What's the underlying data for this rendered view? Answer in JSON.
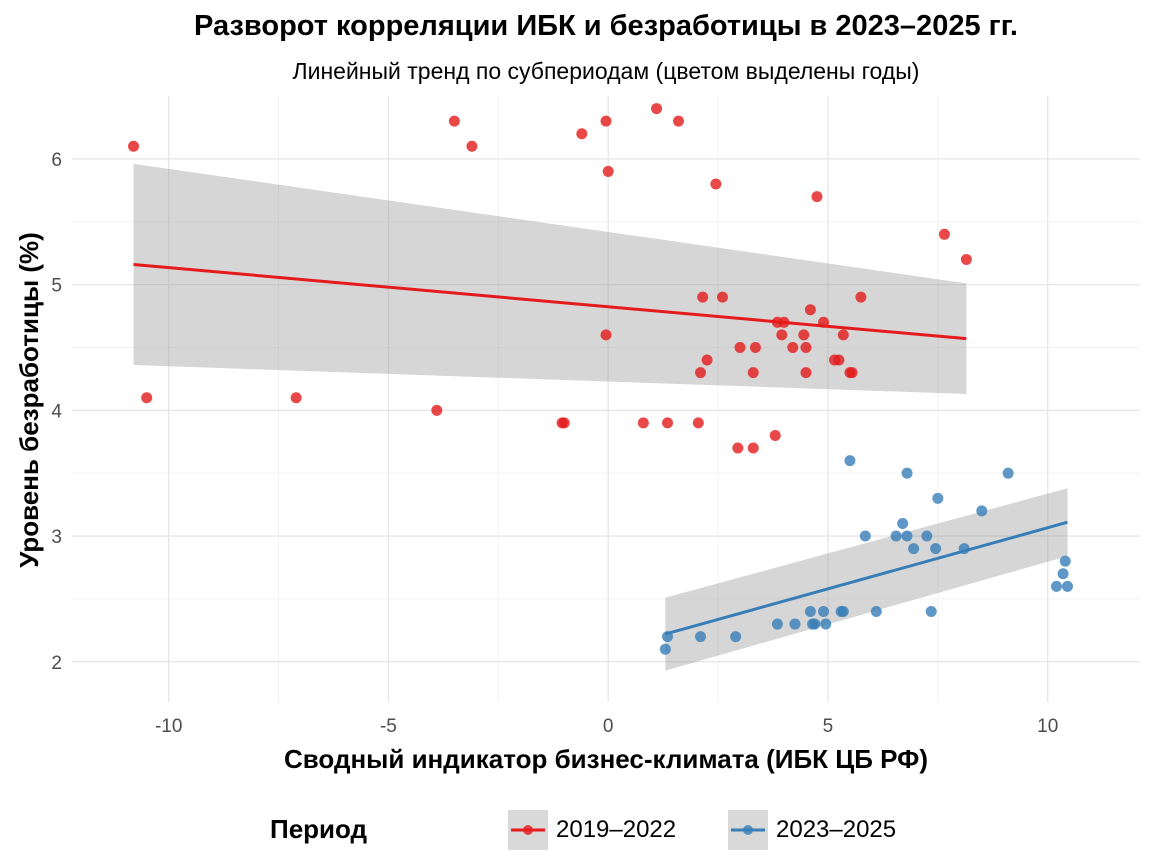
{
  "chart_data": {
    "type": "scatter",
    "title": "Разворот корреляции ИБК и безработицы в 2023–2025 гг.",
    "subtitle": "Линейный тренд по субпериодам (цветом выделены годы)",
    "xlabel": "Сводный индикатор бизнес-климата (ИБК ЦБ РФ)",
    "ylabel": "Уровень безработицы (%)",
    "xlim": [
      -12.2,
      12.1
    ],
    "ylim": [
      1.68,
      6.5
    ],
    "x_ticks": [
      -10,
      -5,
      0,
      5,
      10
    ],
    "y_ticks": [
      2,
      3,
      4,
      5,
      6
    ],
    "grid": true,
    "legend": {
      "title": "Период",
      "position": "bottom"
    },
    "series": [
      {
        "name": "2019–2022",
        "color": "#e41a1c",
        "points": [
          [
            -10.8,
            6.1
          ],
          [
            -10.5,
            4.1
          ],
          [
            -7.1,
            4.1
          ],
          [
            -3.9,
            4.0
          ],
          [
            -3.5,
            6.3
          ],
          [
            -3.1,
            6.1
          ],
          [
            -1.0,
            3.9
          ],
          [
            -1.05,
            3.9
          ],
          [
            -0.6,
            6.2
          ],
          [
            -0.05,
            6.3
          ],
          [
            0.0,
            5.9
          ],
          [
            -0.05,
            4.6
          ],
          [
            0.8,
            3.9
          ],
          [
            1.1,
            6.4
          ],
          [
            1.35,
            3.9
          ],
          [
            1.6,
            6.3
          ],
          [
            2.05,
            3.9
          ],
          [
            2.1,
            4.3
          ],
          [
            2.15,
            4.9
          ],
          [
            2.25,
            4.4
          ],
          [
            2.45,
            5.8
          ],
          [
            2.6,
            4.9
          ],
          [
            2.95,
            3.7
          ],
          [
            3.0,
            4.5
          ],
          [
            3.3,
            3.7
          ],
          [
            3.3,
            4.3
          ],
          [
            3.35,
            4.5
          ],
          [
            3.8,
            3.8
          ],
          [
            3.85,
            4.7
          ],
          [
            3.95,
            4.6
          ],
          [
            4.0,
            4.7
          ],
          [
            4.2,
            4.5
          ],
          [
            4.45,
            4.6
          ],
          [
            4.5,
            4.5
          ],
          [
            4.5,
            4.3
          ],
          [
            4.6,
            4.8
          ],
          [
            4.75,
            5.7
          ],
          [
            4.9,
            4.7
          ],
          [
            5.15,
            4.4
          ],
          [
            5.25,
            4.4
          ],
          [
            5.35,
            4.6
          ],
          [
            5.5,
            4.3
          ],
          [
            5.55,
            4.3
          ],
          [
            5.75,
            4.9
          ],
          [
            7.65,
            5.4
          ],
          [
            8.15,
            5.2
          ]
        ],
        "trend": {
          "x": [
            -10.8,
            8.15
          ],
          "y": [
            5.16,
            4.57
          ],
          "ci_lo": [
            4.36,
            4.13
          ],
          "ci_hi": [
            5.96,
            5.01
          ]
        }
      },
      {
        "name": "2023–2025",
        "color": "#377eb8",
        "points": [
          [
            1.3,
            2.1
          ],
          [
            1.35,
            2.2
          ],
          [
            2.1,
            2.2
          ],
          [
            2.9,
            2.2
          ],
          [
            3.85,
            2.3
          ],
          [
            4.25,
            2.3
          ],
          [
            4.6,
            2.4
          ],
          [
            4.65,
            2.3
          ],
          [
            4.7,
            2.3
          ],
          [
            4.9,
            2.4
          ],
          [
            4.95,
            2.3
          ],
          [
            5.3,
            2.4
          ],
          [
            5.35,
            2.4
          ],
          [
            5.5,
            3.6
          ],
          [
            5.85,
            3.0
          ],
          [
            6.1,
            2.4
          ],
          [
            6.55,
            3.0
          ],
          [
            6.7,
            3.1
          ],
          [
            6.8,
            3.5
          ],
          [
            6.8,
            3.0
          ],
          [
            6.95,
            2.9
          ],
          [
            7.25,
            3.0
          ],
          [
            7.35,
            2.4
          ],
          [
            7.45,
            2.9
          ],
          [
            7.5,
            3.3
          ],
          [
            8.1,
            2.9
          ],
          [
            8.5,
            3.2
          ],
          [
            9.1,
            3.5
          ],
          [
            10.2,
            2.6
          ],
          [
            10.35,
            2.7
          ],
          [
            10.4,
            2.8
          ],
          [
            10.45,
            2.6
          ]
        ],
        "trend": {
          "x": [
            1.3,
            10.45
          ],
          "y": [
            2.22,
            3.11
          ],
          "ci_lo": [
            1.93,
            2.84
          ],
          "ci_hi": [
            2.51,
            3.38
          ]
        }
      }
    ]
  }
}
